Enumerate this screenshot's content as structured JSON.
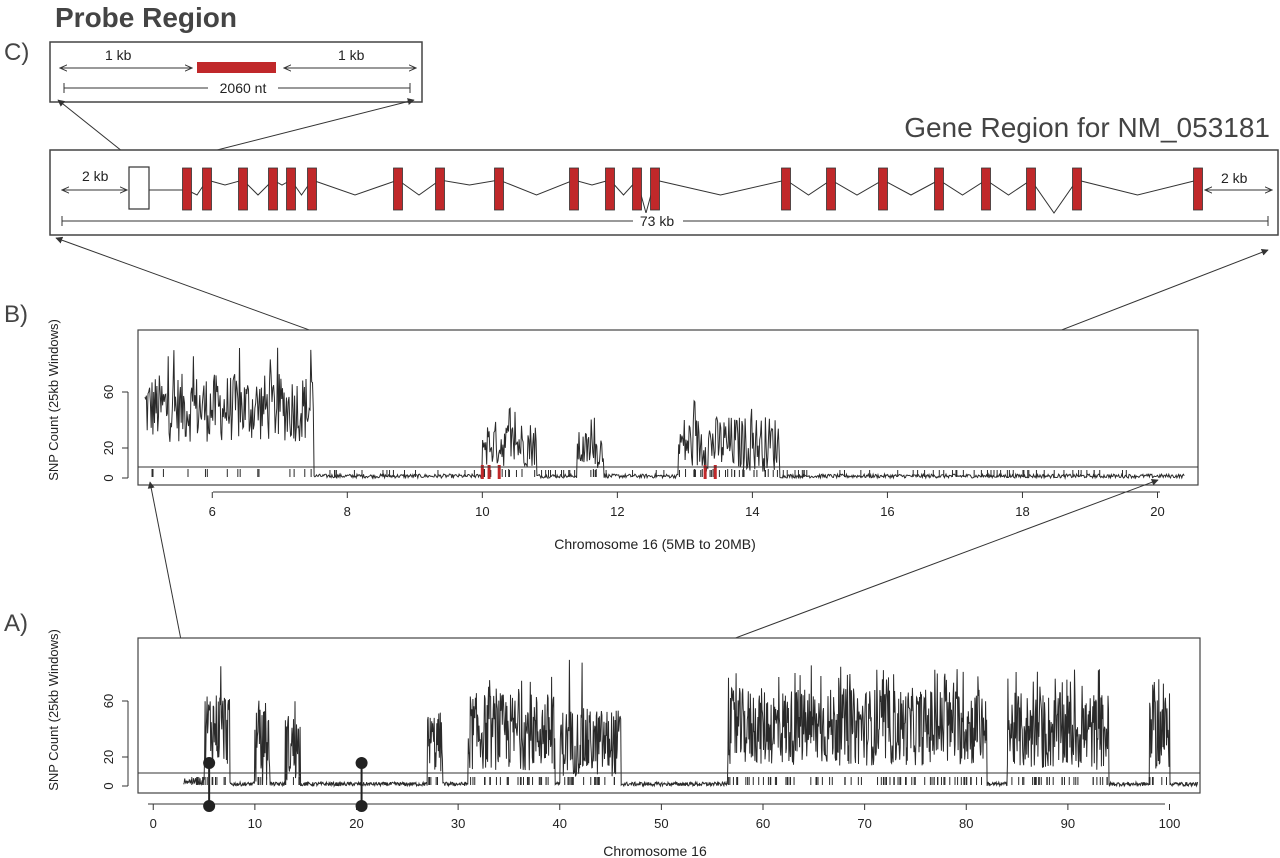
{
  "panel_c": {
    "title": "Probe Region",
    "letter": "C)",
    "left_flank": "1 kb",
    "right_flank": "1 kb",
    "total": "2060 nt"
  },
  "gene_region": {
    "title": "Gene Region for NM_053181",
    "left_flank": "2 kb",
    "right_flank": "2 kb",
    "total": "73 kb"
  },
  "panel_b": {
    "letter": "B)",
    "ylabel": "SNP Count (25kb Windows)",
    "xlabel": "Chromosome 16 (5MB to 20MB)",
    "yticks": [
      "0",
      "20",
      "60"
    ],
    "xticks": [
      "6",
      "8",
      "10",
      "12",
      "14",
      "16",
      "18",
      "20"
    ]
  },
  "panel_a": {
    "letter": "A)",
    "ylabel": "SNP Count (25kb Windows)",
    "xlabel": "Chromosome 16",
    "yticks": [
      "0",
      "20",
      "60"
    ],
    "xticks": [
      "0",
      "10",
      "20",
      "30",
      "40",
      "50",
      "60",
      "70",
      "80",
      "90",
      "100"
    ]
  },
  "colors": {
    "exon": "#c0282a",
    "line": "#333333",
    "frame": "#444444"
  },
  "chart_data": [
    {
      "type": "line",
      "panel": "B",
      "xlabel": "Chromosome 16 (5MB to 20MB)",
      "ylabel": "SNP Count (25kb Windows)",
      "xlim": [
        4.9,
        20.6
      ],
      "ylim": [
        0,
        95
      ],
      "threshold": 8,
      "segments": [
        {
          "x": [
            5.0,
            7.5
          ],
          "level": 45,
          "amp": 22,
          "peak": 88
        },
        {
          "x": [
            10.0,
            10.8
          ],
          "level": 22,
          "amp": 15,
          "peak": 48
        },
        {
          "x": [
            11.4,
            11.8
          ],
          "level": 18,
          "amp": 12,
          "peak": 40
        },
        {
          "x": [
            12.9,
            14.4
          ],
          "level": 22,
          "amp": 18,
          "peak": 50
        }
      ],
      "red_marks_x": [
        10.0,
        10.1,
        10.25,
        13.3,
        13.45
      ]
    },
    {
      "type": "line",
      "panel": "A",
      "xlabel": "Chromosome 16",
      "ylabel": "SNP Count (25kb Windows)",
      "xlim": [
        -1.5,
        103
      ],
      "ylim": [
        0,
        95
      ],
      "threshold": 8,
      "segments": [
        {
          "x": [
            3.0,
            5.0
          ],
          "level": 3,
          "amp": 2,
          "peak": 5
        },
        {
          "x": [
            5.0,
            7.5
          ],
          "level": 38,
          "amp": 25,
          "peak": 88
        },
        {
          "x": [
            10.0,
            11.5
          ],
          "level": 25,
          "amp": 25,
          "peak": 62
        },
        {
          "x": [
            13.0,
            14.5
          ],
          "level": 25,
          "amp": 22,
          "peak": 60
        },
        {
          "x": [
            27.0,
            28.5
          ],
          "level": 28,
          "amp": 20,
          "peak": 45
        },
        {
          "x": [
            31.0,
            39.5
          ],
          "level": 35,
          "amp": 25,
          "peak": 72
        },
        {
          "x": [
            40.0,
            46.0
          ],
          "level": 28,
          "amp": 22,
          "peak": 82
        },
        {
          "x": [
            56.5,
            82.0
          ],
          "level": 38,
          "amp": 25,
          "peak": 78
        },
        {
          "x": [
            84.0,
            94.0
          ],
          "level": 35,
          "amp": 25,
          "peak": 75
        },
        {
          "x": [
            98.0,
            100.0
          ],
          "level": 35,
          "amp": 25,
          "peak": 70
        }
      ],
      "markers_x": [
        5.5,
        20.5
      ]
    }
  ]
}
